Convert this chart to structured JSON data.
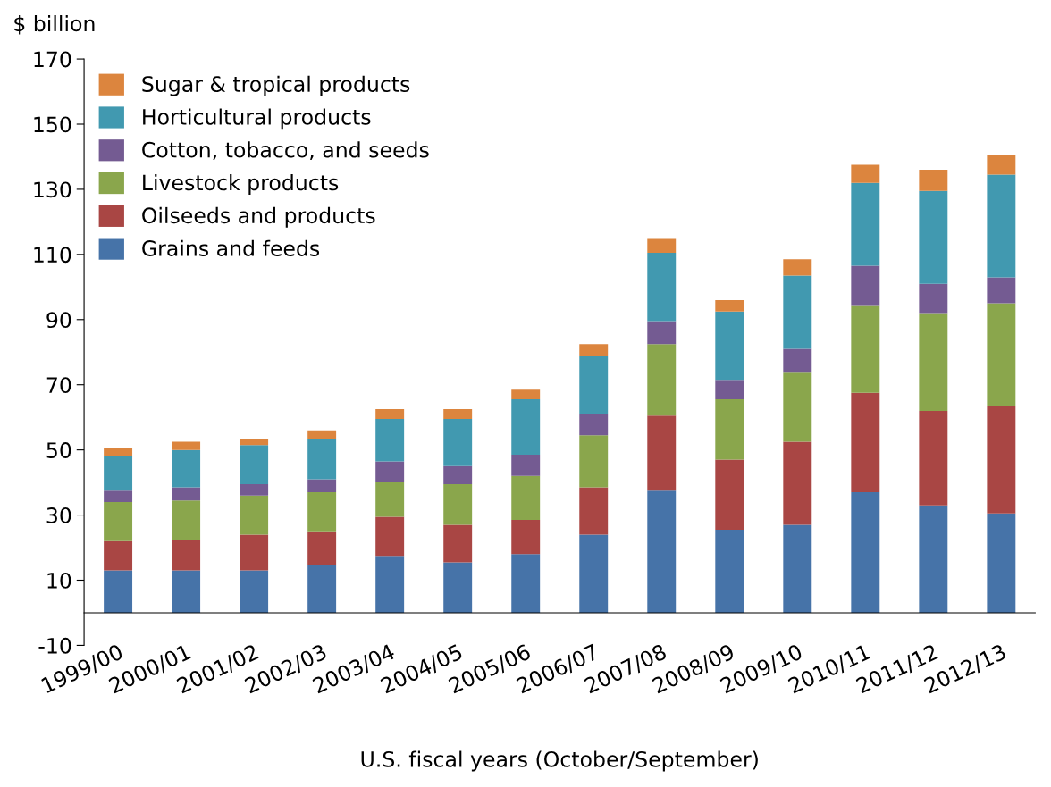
{
  "chart_data": {
    "type": "bar",
    "stacked": true,
    "ylabel": "$ billion",
    "xlabel": "U.S. fiscal years (October/September)",
    "categories": [
      "1999/00",
      "2000/01",
      "2001/02",
      "2002/03",
      "2003/04",
      "2004/05",
      "2005/06",
      "2006/07",
      "2007/08",
      "2008/09",
      "2009/10",
      "2010/11",
      "2011/12",
      "2012/13"
    ],
    "series": [
      {
        "name": "Grains and feeds",
        "color": "#4673a8",
        "values": [
          13,
          13,
          13,
          14.5,
          17.5,
          15.5,
          18,
          24,
          37.5,
          25.5,
          27,
          37,
          33,
          30.5
        ]
      },
      {
        "name": "Oilseeds and products",
        "color": "#a94644",
        "values": [
          9,
          9.5,
          11,
          10.5,
          12,
          11.5,
          10.5,
          14.5,
          23,
          21.5,
          25.5,
          30.5,
          29,
          33
        ]
      },
      {
        "name": "Livestock products",
        "color": "#8aa64c",
        "values": [
          12,
          12,
          12,
          12,
          10.5,
          12.5,
          13.5,
          16,
          22,
          18.5,
          21.5,
          27,
          30,
          31.5
        ]
      },
      {
        "name": "Cotton, tobacco, and seeds",
        "color": "#745b92",
        "values": [
          3.5,
          4,
          3.5,
          4,
          6.5,
          5.5,
          6.5,
          6.5,
          7,
          6,
          7,
          12,
          9,
          8
        ]
      },
      {
        "name": "Horticultural products",
        "color": "#4199b0",
        "values": [
          10.5,
          11.5,
          12,
          12.5,
          13,
          14.5,
          17,
          18,
          21,
          21,
          22.5,
          25.5,
          28.5,
          31.5
        ]
      },
      {
        "name": "Sugar & tropical products",
        "color": "#dc853e",
        "values": [
          2.5,
          2.5,
          2,
          2.5,
          3,
          3,
          3,
          3.5,
          4.5,
          3.5,
          5,
          5.5,
          6.5,
          6
        ]
      }
    ],
    "ylim": [
      -10,
      170
    ],
    "yticks": [
      -10,
      10,
      30,
      50,
      70,
      90,
      110,
      130,
      150,
      170
    ],
    "grid": false,
    "legend": "top left"
  }
}
